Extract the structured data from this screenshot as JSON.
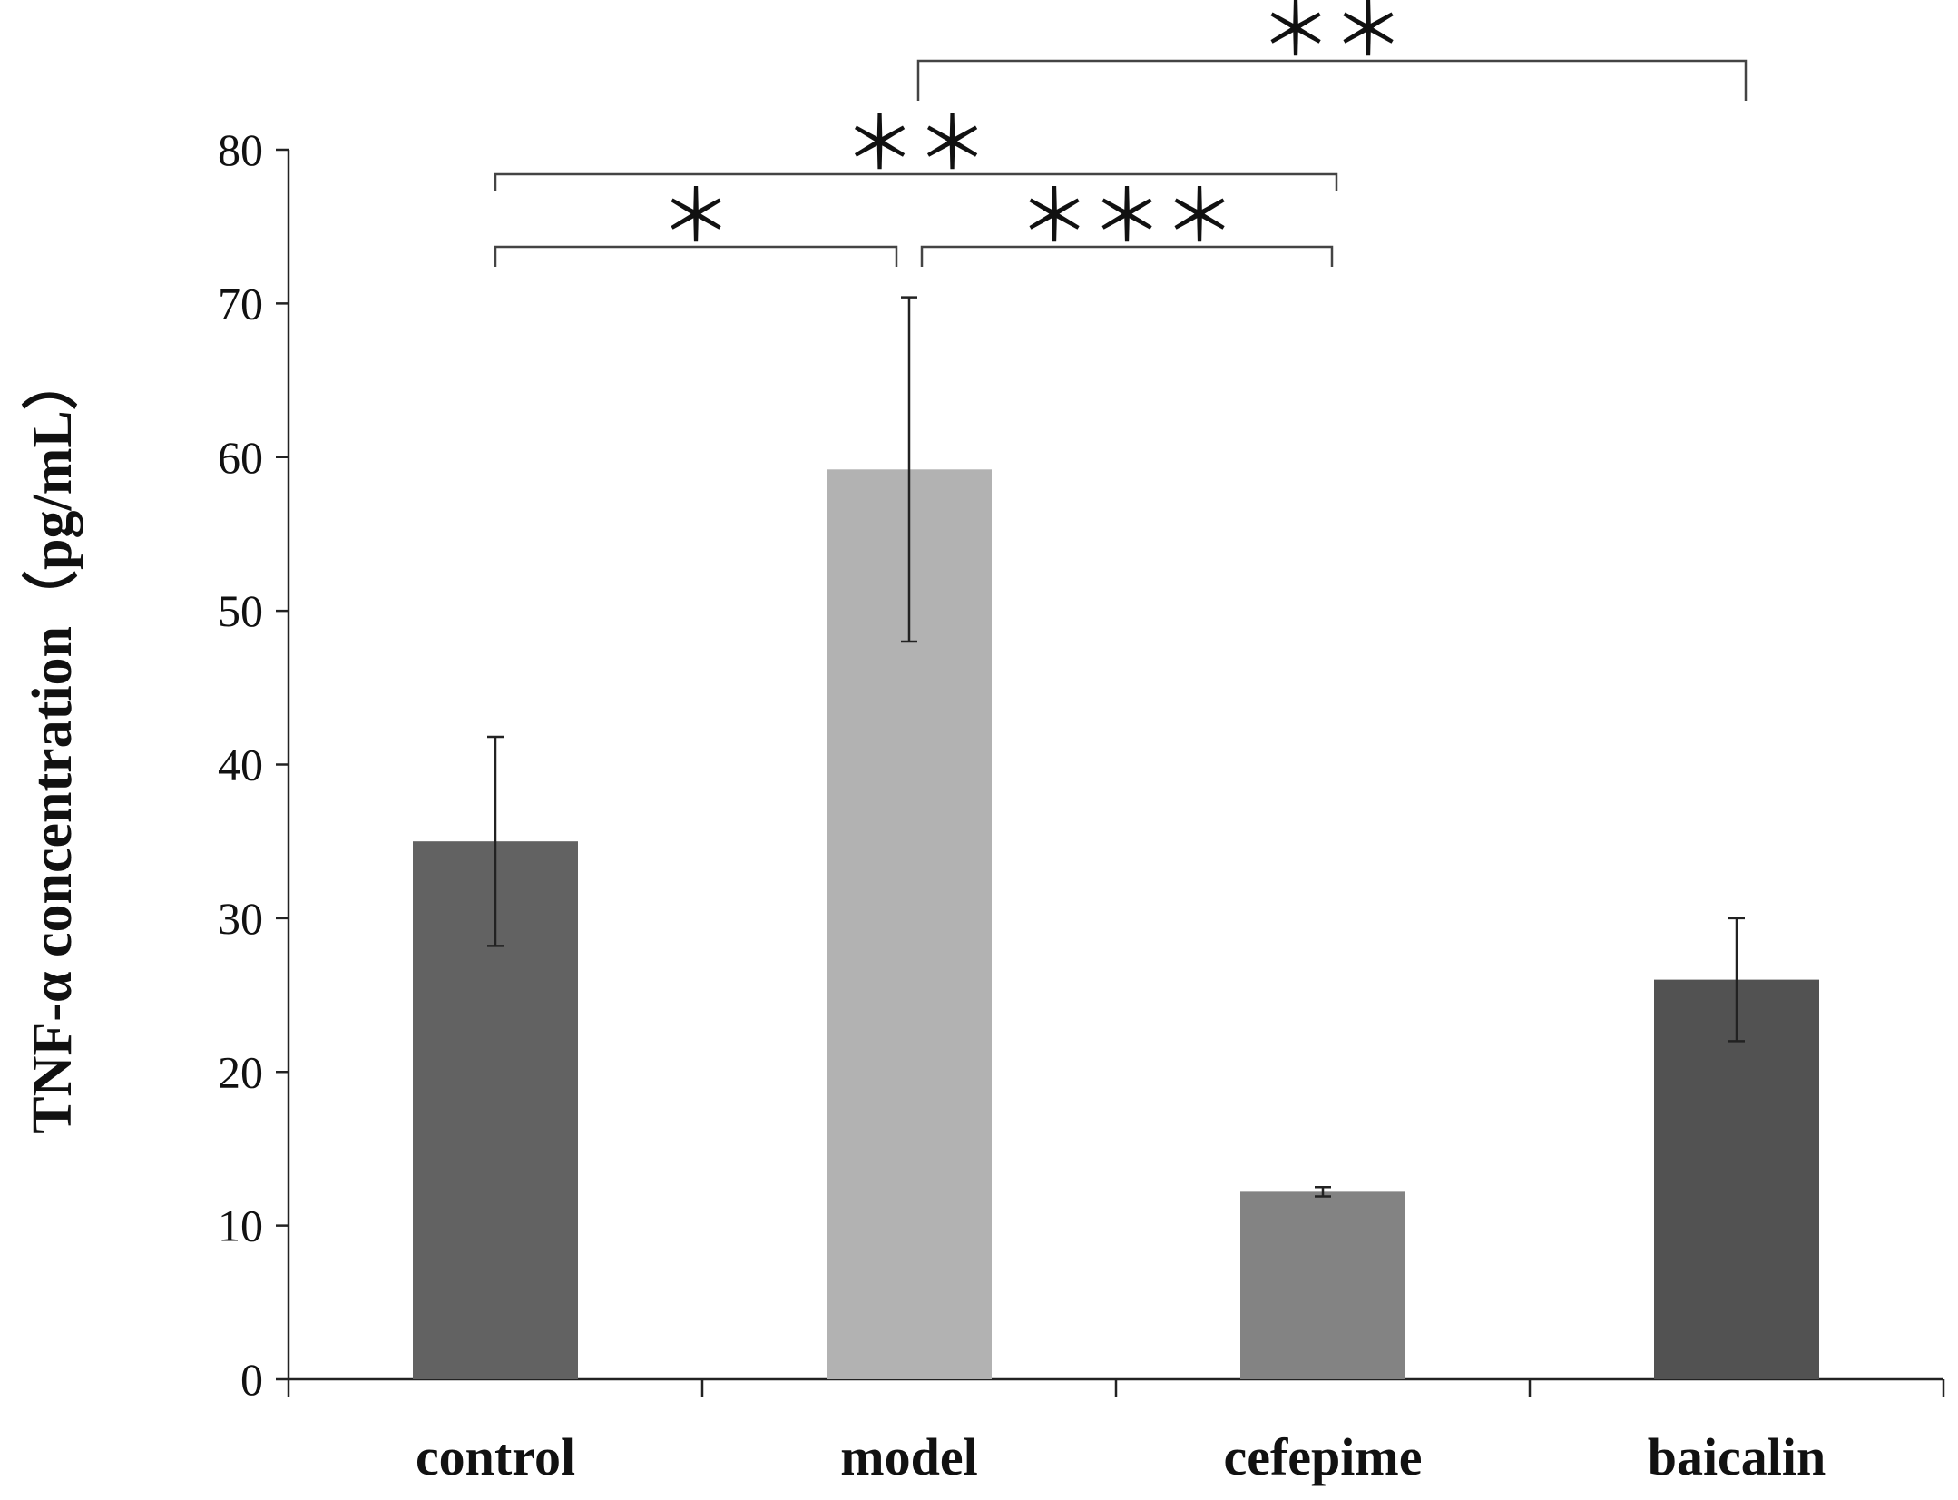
{
  "chart_data": {
    "type": "bar",
    "title": "",
    "xlabel": "",
    "ylabel": "TNF-α concentration（pg/mL）",
    "ylim": [
      0,
      80
    ],
    "yticks": [
      0,
      10,
      20,
      30,
      40,
      50,
      60,
      70,
      80
    ],
    "grid": false,
    "legend": "none",
    "categories": [
      "control",
      "model",
      "cefepime",
      "baicalin"
    ],
    "values": [
      35.0,
      59.2,
      12.2,
      26.0
    ],
    "errors": [
      6.8,
      11.2,
      0.3,
      4.0
    ],
    "bar_colors": [
      "#626262",
      "#b2b2b2",
      "#838383",
      "#525252"
    ],
    "significance": [
      {
        "from": "model",
        "to": "baicalin",
        "label": "＊＊"
      },
      {
        "from": "control",
        "to": "cefepime",
        "label": "＊＊"
      },
      {
        "from": "control",
        "to": "model",
        "label": "＊"
      },
      {
        "from": "model",
        "to": "cefepime",
        "label": "＊＊＊"
      }
    ]
  }
}
